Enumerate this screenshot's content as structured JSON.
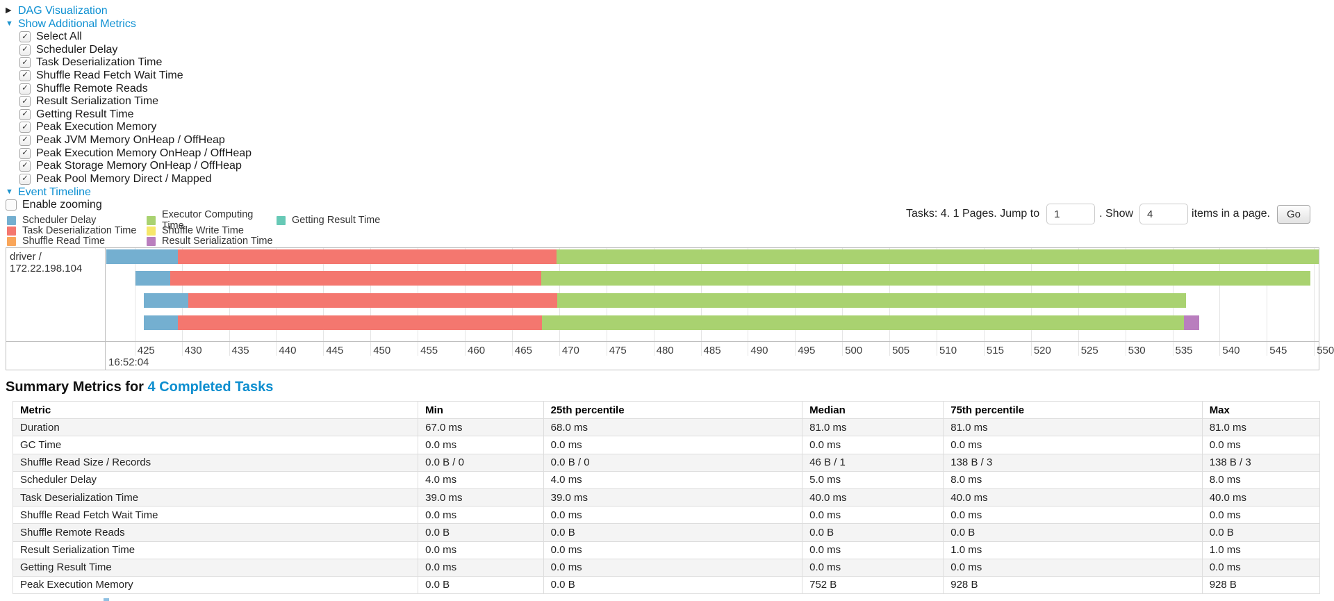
{
  "controls": {
    "dag_label": "DAG Visualization",
    "metrics_label": "Show Additional Metrics",
    "metric_checkboxes": [
      {
        "label": "Select All",
        "checked": true
      },
      {
        "label": "Scheduler Delay",
        "checked": true
      },
      {
        "label": "Task Deserialization Time",
        "checked": true
      },
      {
        "label": "Shuffle Read Fetch Wait Time",
        "checked": true
      },
      {
        "label": "Shuffle Remote Reads",
        "checked": true
      },
      {
        "label": "Result Serialization Time",
        "checked": true
      },
      {
        "label": "Getting Result Time",
        "checked": true
      },
      {
        "label": "Peak Execution Memory",
        "checked": true
      },
      {
        "label": "Peak JVM Memory OnHeap / OffHeap",
        "checked": true
      },
      {
        "label": "Peak Execution Memory OnHeap / OffHeap",
        "checked": true
      },
      {
        "label": "Peak Storage Memory OnHeap / OffHeap",
        "checked": true
      },
      {
        "label": "Peak Pool Memory Direct / Mapped",
        "checked": true
      }
    ],
    "event_timeline_label": "Event Timeline",
    "enable_zooming": {
      "label": "Enable zooming",
      "checked": false
    }
  },
  "palette": {
    "scheduler_delay": "#74AFD0",
    "task_deserialization": "#F4776F",
    "shuffle_read": "#F9A65A",
    "executor_computing": "#A9D270",
    "shuffle_write": "#F6E76A",
    "result_serialization": "#B97EBE",
    "getting_result": "#67C9B6"
  },
  "legend": {
    "columns": [
      [
        {
          "label": "Scheduler Delay",
          "color_key": "scheduler_delay"
        },
        {
          "label": "Task Deserialization Time",
          "color_key": "task_deserialization"
        },
        {
          "label": "Shuffle Read Time",
          "color_key": "shuffle_read"
        }
      ],
      [
        {
          "label": "Executor Computing Time",
          "color_key": "executor_computing"
        },
        {
          "label": "Shuffle Write Time",
          "color_key": "shuffle_write"
        },
        {
          "label": "Result Serialization Time",
          "color_key": "result_serialization"
        }
      ],
      [
        {
          "label": "Getting Result Time",
          "color_key": "getting_result"
        }
      ]
    ]
  },
  "pagination": {
    "text_before": "Tasks: 4. 1 Pages. Jump to",
    "jump_value": "1",
    "text_mid": ". Show",
    "show_value": "4",
    "text_after": "items in a page.",
    "go_label": "Go"
  },
  "chart_data": {
    "type": "timeline",
    "group_label": "driver / 172.22.198.104",
    "axis": {
      "domain": [
        422.0,
        550.5
      ],
      "tick_start": 425,
      "tick_end": 550,
      "tick_interval": 5,
      "major_label": "16:52:04",
      "units": "milliseconds within second 16:52:04"
    },
    "tasks": [
      {
        "segments": [
          {
            "key": "scheduler_delay",
            "start": 422.0,
            "end": 429.6
          },
          {
            "key": "task_deserialization",
            "start": 429.6,
            "end": 469.7
          },
          {
            "key": "executor_computing",
            "start": 469.7,
            "end": 550.5
          }
        ]
      },
      {
        "segments": [
          {
            "key": "scheduler_delay",
            "start": 425.1,
            "end": 428.8
          },
          {
            "key": "task_deserialization",
            "start": 428.8,
            "end": 468.1
          },
          {
            "key": "executor_computing",
            "start": 468.1,
            "end": 549.6
          }
        ]
      },
      {
        "segments": [
          {
            "key": "scheduler_delay",
            "start": 426.0,
            "end": 430.7
          },
          {
            "key": "task_deserialization",
            "start": 430.7,
            "end": 469.8
          },
          {
            "key": "executor_computing",
            "start": 469.8,
            "end": 536.4
          }
        ]
      },
      {
        "segments": [
          {
            "key": "scheduler_delay",
            "start": 426.0,
            "end": 429.6
          },
          {
            "key": "task_deserialization",
            "start": 429.6,
            "end": 468.2
          },
          {
            "key": "executor_computing",
            "start": 468.2,
            "end": 536.2
          },
          {
            "key": "result_serialization",
            "start": 536.2,
            "end": 537.8
          }
        ]
      }
    ]
  },
  "summary": {
    "title_prefix": "Summary Metrics for ",
    "title_link": "4 Completed Tasks",
    "table": {
      "headers": [
        "Metric",
        "Min",
        "25th percentile",
        "Median",
        "75th percentile",
        "Max"
      ],
      "rows": [
        [
          "Duration",
          "67.0 ms",
          "68.0 ms",
          "81.0 ms",
          "81.0 ms",
          "81.0 ms"
        ],
        [
          "GC Time",
          "0.0 ms",
          "0.0 ms",
          "0.0 ms",
          "0.0 ms",
          "0.0 ms"
        ],
        [
          "Shuffle Read Size / Records",
          "0.0 B / 0",
          "0.0 B / 0",
          "46 B / 1",
          "138 B / 3",
          "138 B / 3"
        ],
        [
          "Scheduler Delay",
          "4.0 ms",
          "4.0 ms",
          "5.0 ms",
          "8.0 ms",
          "8.0 ms"
        ],
        [
          "Task Deserialization Time",
          "39.0 ms",
          "39.0 ms",
          "40.0 ms",
          "40.0 ms",
          "40.0 ms"
        ],
        [
          "Shuffle Read Fetch Wait Time",
          "0.0 ms",
          "0.0 ms",
          "0.0 ms",
          "0.0 ms",
          "0.0 ms"
        ],
        [
          "Shuffle Remote Reads",
          "0.0 B",
          "0.0 B",
          "0.0 B",
          "0.0 B",
          "0.0 B"
        ],
        [
          "Result Serialization Time",
          "0.0 ms",
          "0.0 ms",
          "0.0 ms",
          "1.0 ms",
          "1.0 ms"
        ],
        [
          "Getting Result Time",
          "0.0 ms",
          "0.0 ms",
          "0.0 ms",
          "0.0 ms",
          "0.0 ms"
        ],
        [
          "Peak Execution Memory",
          "0.0 B",
          "0.0 B",
          "752 B",
          "928 B",
          "928 B"
        ]
      ]
    }
  }
}
